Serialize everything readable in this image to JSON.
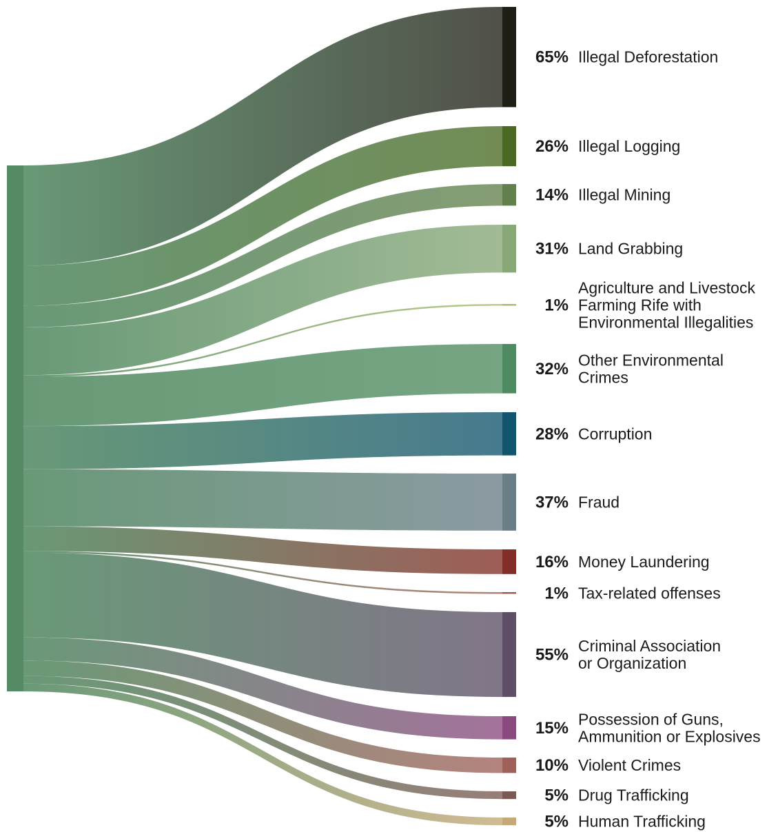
{
  "chart_data": {
    "type": "sankey",
    "source": {
      "name": "",
      "color": "#548b64"
    },
    "targets": [
      {
        "percent_label": "65%",
        "value": 65,
        "label_lines": [
          "Illegal Deforestation"
        ],
        "color": "#1e1e14"
      },
      {
        "percent_label": "26%",
        "value": 26,
        "label_lines": [
          "Illegal Logging"
        ],
        "color": "#4a6a24"
      },
      {
        "percent_label": "14%",
        "value": 14,
        "label_lines": [
          "Illegal Mining"
        ],
        "color": "#62804c"
      },
      {
        "percent_label": "31%",
        "value": 31,
        "label_lines": [
          "Land Grabbing"
        ],
        "color": "#88a878"
      },
      {
        "percent_label": "1%",
        "value": 1,
        "label_lines": [
          "Agriculture and Livestock",
          "Farming Rife with",
          "Environmental Illegalities"
        ],
        "color": "#a8bc6c"
      },
      {
        "percent_label": "32%",
        "value": 32,
        "label_lines": [
          "Other Environmental",
          "Crimes"
        ],
        "color": "#4e8b60"
      },
      {
        "percent_label": "28%",
        "value": 28,
        "label_lines": [
          "Corruption"
        ],
        "color": "#12556e"
      },
      {
        "percent_label": "37%",
        "value": 37,
        "label_lines": [
          "Fraud"
        ],
        "color": "#6a7e88"
      },
      {
        "percent_label": "16%",
        "value": 16,
        "label_lines": [
          "Money Laundering"
        ],
        "color": "#822e26"
      },
      {
        "percent_label": "1%",
        "value": 1,
        "label_lines": [
          "Tax-related offenses"
        ],
        "color": "#9c5e4e"
      },
      {
        "percent_label": "55%",
        "value": 55,
        "label_lines": [
          "Criminal Association",
          "or Organization"
        ],
        "color": "#5e4e66"
      },
      {
        "percent_label": "15%",
        "value": 15,
        "label_lines": [
          "Possession of Guns,",
          "Ammunition or Explosives"
        ],
        "color": "#8a4a80"
      },
      {
        "percent_label": "10%",
        "value": 10,
        "label_lines": [
          "Violent Crimes"
        ],
        "color": "#a0605a"
      },
      {
        "percent_label": "5%",
        "value": 5,
        "label_lines": [
          "Drug Trafficking"
        ],
        "color": "#7a5a52"
      },
      {
        "percent_label": "5%",
        "value": 5,
        "label_lines": [
          "Human Trafficking"
        ],
        "color": "#c4a876"
      }
    ]
  }
}
